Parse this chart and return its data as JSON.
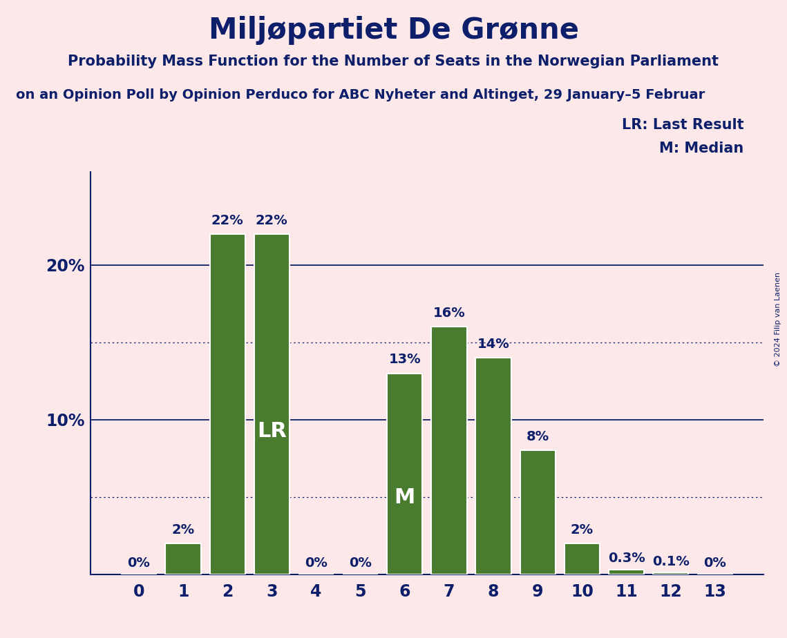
{
  "title": "Miljøpartiet De Grønne",
  "subtitle1": "Probability Mass Function for the Number of Seats in the Norwegian Parliament",
  "subtitle2": "on an Opinion Poll by Opinion Perduco for ABC Nyheter and Altinget, 29 January–5 Februar",
  "copyright": "© 2024 Filip van Laenen",
  "categories": [
    0,
    1,
    2,
    3,
    4,
    5,
    6,
    7,
    8,
    9,
    10,
    11,
    12,
    13
  ],
  "values": [
    0,
    2,
    22,
    22,
    0,
    0,
    13,
    16,
    14,
    8,
    2,
    0.3,
    0.1,
    0
  ],
  "bar_color": "#4a7c2f",
  "background_color": "#fce8e8",
  "text_color": "#0d1f6b",
  "bar_labels": [
    "0%",
    "2%",
    "22%",
    "22%",
    "0%",
    "0%",
    "13%",
    "16%",
    "14%",
    "8%",
    "2%",
    "0.3%",
    "0.1%",
    "0%"
  ],
  "lr_bar": 3,
  "median_bar": 6,
  "lr_label": "LR",
  "median_label": "M",
  "legend_lr": "LR: Last Result",
  "legend_m": "M: Median",
  "solid_yticks": [
    10,
    20
  ],
  "dotted_yticks": [
    5,
    15
  ],
  "ylim": [
    0,
    26
  ],
  "bar_edge_color": "#ffffff",
  "bar_linewidth": 1.5,
  "title_fontsize": 30,
  "subtitle1_fontsize": 15,
  "subtitle2_fontsize": 14,
  "bar_label_fontsize": 14,
  "ytick_fontsize": 17,
  "xtick_fontsize": 17,
  "legend_fontsize": 15,
  "inside_label_fontsize": 22
}
